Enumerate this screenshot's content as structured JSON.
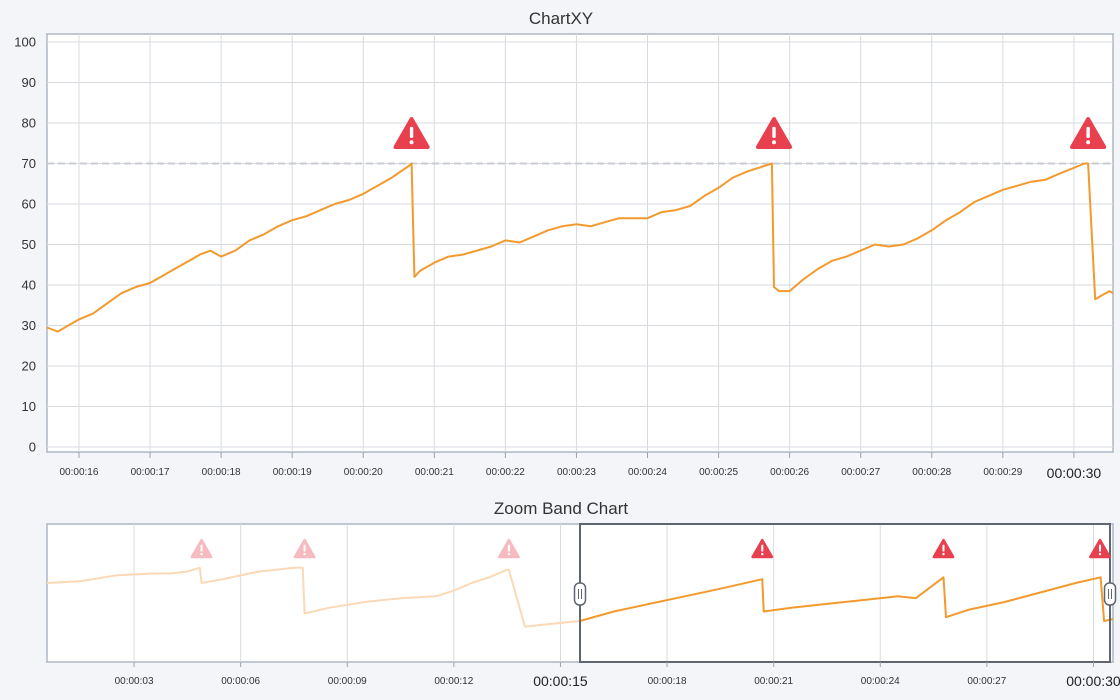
{
  "chart_data": [
    {
      "type": "line",
      "title": "ChartXY",
      "ylim": [
        0,
        100
      ],
      "yticks": [
        0,
        10,
        20,
        30,
        40,
        50,
        60,
        70,
        80,
        90,
        100
      ],
      "xlim": [
        15.55,
        30.55
      ],
      "xticks": [
        {
          "value": 16,
          "label": "00:00:16"
        },
        {
          "value": 17,
          "label": "00:00:17"
        },
        {
          "value": 18,
          "label": "00:00:18"
        },
        {
          "value": 19,
          "label": "00:00:19"
        },
        {
          "value": 20,
          "label": "00:00:20"
        },
        {
          "value": 21,
          "label": "00:00:21"
        },
        {
          "value": 22,
          "label": "00:00:22"
        },
        {
          "value": 23,
          "label": "00:00:23"
        },
        {
          "value": 24,
          "label": "00:00:24"
        },
        {
          "value": 25,
          "label": "00:00:25"
        },
        {
          "value": 26,
          "label": "00:00:26"
        },
        {
          "value": 27,
          "label": "00:00:27"
        },
        {
          "value": 28,
          "label": "00:00:28"
        },
        {
          "value": 29,
          "label": "00:00:29"
        },
        {
          "value": 30,
          "label": "00:00:30",
          "major": true
        }
      ],
      "threshold": 70,
      "grid": true,
      "series": [
        {
          "color": "#f39a2e",
          "x": [
            15.55,
            15.7,
            15.85,
            16.0,
            16.2,
            16.4,
            16.6,
            16.8,
            17.0,
            17.2,
            17.4,
            17.6,
            17.7,
            17.85,
            18.0,
            18.2,
            18.4,
            18.6,
            18.8,
            19.0,
            19.2,
            19.4,
            19.6,
            19.8,
            20.0,
            20.2,
            20.4,
            20.65,
            20.68,
            20.72,
            20.8,
            21.0,
            21.2,
            21.4,
            21.6,
            21.8,
            22.0,
            22.2,
            22.4,
            22.6,
            22.8,
            23.0,
            23.2,
            23.4,
            23.6,
            23.8,
            24.0,
            24.2,
            24.4,
            24.6,
            24.8,
            25.0,
            25.2,
            25.4,
            25.75,
            25.78,
            25.85,
            26.0,
            26.2,
            26.4,
            26.6,
            26.8,
            27.0,
            27.2,
            27.4,
            27.6,
            27.8,
            28.0,
            28.2,
            28.4,
            28.6,
            28.8,
            29.0,
            29.2,
            29.4,
            29.6,
            29.8,
            30.15,
            30.2,
            30.3,
            30.4,
            30.5,
            30.55
          ],
          "y": [
            29.5,
            28.5,
            30,
            31.5,
            33,
            35.5,
            38,
            39.5,
            40.5,
            42.5,
            44.5,
            46.5,
            47.5,
            48.5,
            47,
            48.5,
            51,
            52.5,
            54.5,
            56,
            57,
            58.5,
            60,
            61,
            62.5,
            64.5,
            66.5,
            69.5,
            70,
            42,
            43.5,
            45.5,
            47,
            47.5,
            48.5,
            49.5,
            51,
            50.5,
            52,
            53.5,
            54.5,
            55,
            54.5,
            55.5,
            56.5,
            56.5,
            56.5,
            58,
            58.5,
            59.5,
            62,
            64,
            66.5,
            68,
            70,
            39.5,
            38.5,
            38.5,
            41.5,
            44,
            46,
            47,
            48.5,
            50,
            49.5,
            50,
            51.5,
            53.5,
            56,
            58,
            60.5,
            62,
            63.5,
            64.5,
            65.5,
            66,
            67.5,
            70,
            70,
            36.5,
            37.5,
            38.5,
            38
          ]
        }
      ],
      "alerts": [
        20.68,
        25.78,
        30.2
      ]
    },
    {
      "type": "line",
      "title": "Zoom Band Chart",
      "xlim": [
        0.55,
        30.55
      ],
      "xticks": [
        {
          "value": 3,
          "label": "00:00:03"
        },
        {
          "value": 6,
          "label": "00:00:06"
        },
        {
          "value": 9,
          "label": "00:00:09"
        },
        {
          "value": 12,
          "label": "00:00:12"
        },
        {
          "value": 15,
          "label": "00:00:15",
          "major": true
        },
        {
          "value": 18,
          "label": "00:00:18"
        },
        {
          "value": 21,
          "label": "00:00:21"
        },
        {
          "value": 24,
          "label": "00:00:24"
        },
        {
          "value": 27,
          "label": "00:00:27"
        },
        {
          "value": 30,
          "label": "00:00:30",
          "major": true
        }
      ],
      "selection": [
        15.55,
        30.55
      ],
      "series": [
        {
          "color": "#f39a2e",
          "x": [
            0.55,
            1.5,
            2.5,
            3.0,
            3.5,
            4.0,
            4.5,
            4.85,
            4.9,
            5.5,
            6.0,
            6.5,
            7.0,
            7.5,
            7.75,
            7.8,
            8.5,
            9.5,
            10.5,
            11.5,
            12.0,
            12.5,
            13.0,
            13.5,
            13.55,
            14.0,
            14.5,
            15.0,
            15.55,
            16.5,
            17.5,
            18.5,
            19.5,
            20.68,
            20.72,
            21.5,
            22.5,
            23.5,
            24.5,
            25.0,
            25.78,
            25.85,
            26.5,
            27.5,
            28.5,
            29.5,
            30.2,
            30.3,
            30.55
          ],
          "y": [
            30,
            31,
            34,
            34.5,
            35,
            35,
            36,
            38,
            30,
            32,
            34,
            36,
            37,
            38,
            38,
            14,
            17,
            20,
            22,
            23,
            26,
            30,
            33,
            37,
            37,
            7,
            8,
            9,
            10,
            15,
            19,
            23,
            27,
            32,
            15,
            17,
            19,
            21,
            23,
            22,
            33,
            12,
            16,
            20,
            25,
            30,
            33,
            10,
            11
          ]
        }
      ],
      "alerts": [
        4.9,
        7.8,
        13.55,
        20.68,
        25.78,
        30.2
      ]
    }
  ]
}
